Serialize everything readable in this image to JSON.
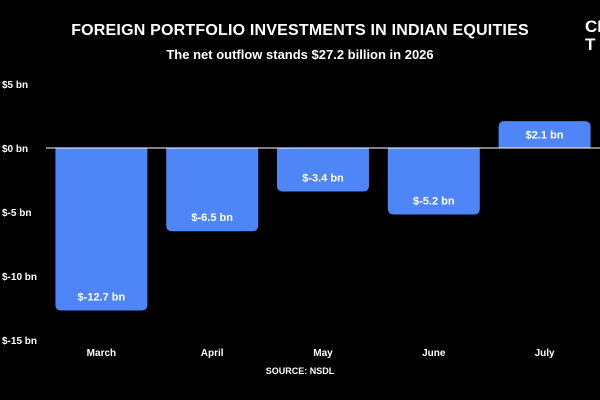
{
  "header": {
    "title": "FOREIGN PORTFOLIO INVESTMENTS IN INDIAN EQUITIES",
    "subtitle": "The net outflow stands $27.2 billion in 2026"
  },
  "logo": {
    "line1": "CI",
    "line2": "T"
  },
  "footer": {
    "source": "SOURCE: NSDL"
  },
  "colors": {
    "bar": "#4F86F7",
    "background": "#000000",
    "zero_line": "#ffffff"
  },
  "chart_data": {
    "type": "bar",
    "title": "FOREIGN PORTFOLIO INVESTMENTS IN INDIAN EQUITIES",
    "subtitle": "The net outflow stands $27.2 billion in 2026",
    "categories": [
      "March",
      "April",
      "May",
      "June",
      "July"
    ],
    "values": [
      -12.7,
      -6.5,
      -3.4,
      -5.2,
      2.1
    ],
    "data_labels": [
      "$-12.7 bn",
      "$-6.5 bn",
      "$-3.4 bn",
      "$-5.2 bn",
      "$2.1 bn"
    ],
    "xlabel": "",
    "ylabel": "",
    "ylim": [
      -15,
      5
    ],
    "yticks": [
      5,
      0,
      -5,
      -10,
      -15
    ],
    "ytick_labels": [
      "$5 bn",
      "$0 bn",
      "$-5 bn",
      "$-10 bn",
      "$-15 bn"
    ],
    "grid": false,
    "source": "SOURCE: NSDL"
  }
}
